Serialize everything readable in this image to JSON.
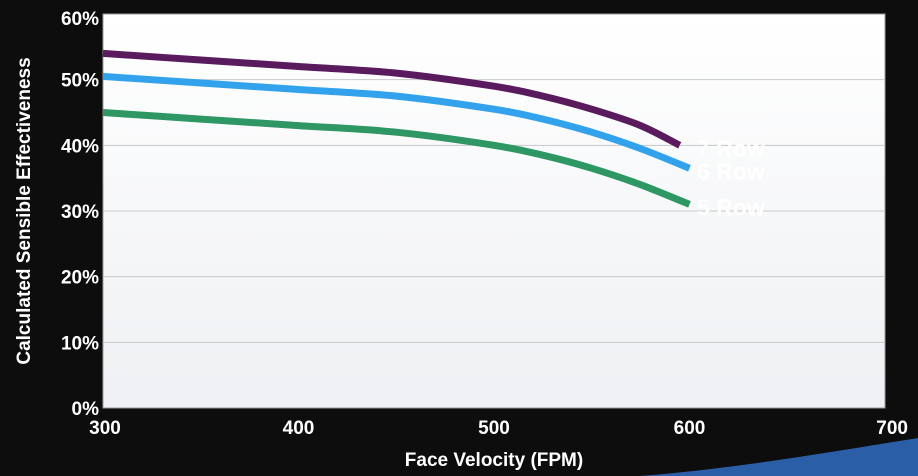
{
  "chart_data": {
    "type": "line",
    "xlabel": "Face Velocity (FPM)",
    "ylabel": "Calculated Sensible Effectiveness",
    "xlim": [
      300,
      700
    ],
    "ylim": [
      0,
      60
    ],
    "x_ticks": [
      300,
      400,
      500,
      600,
      700
    ],
    "x_tick_labels": [
      "300",
      "400",
      "500",
      "600",
      "700"
    ],
    "y_ticks": [
      0,
      10,
      20,
      30,
      40,
      50,
      60
    ],
    "y_tick_labels": [
      "0%",
      "10%",
      "20%",
      "30%",
      "40%",
      "50%",
      "60%"
    ],
    "grid": "horizontal",
    "series": [
      {
        "name": "7 Row",
        "color": "#5a1a5e",
        "x": [
          300,
          350,
          400,
          450,
          500,
          525,
          550,
          575,
          595
        ],
        "y": [
          54,
          53,
          52,
          51,
          49,
          47.5,
          45.5,
          43,
          40
        ]
      },
      {
        "name": "6 Row",
        "color": "#33a2ec",
        "x": [
          300,
          350,
          400,
          450,
          500,
          525,
          550,
          575,
          600
        ],
        "y": [
          50.5,
          49.5,
          48.5,
          47.5,
          45.5,
          44,
          42,
          39.5,
          36.5
        ]
      },
      {
        "name": "5 Row",
        "color": "#2e9764",
        "x": [
          300,
          350,
          400,
          450,
          500,
          525,
          550,
          575,
          600
        ],
        "y": [
          45,
          44,
          43,
          42,
          40,
          38.5,
          36.5,
          34,
          31
        ]
      }
    ]
  }
}
